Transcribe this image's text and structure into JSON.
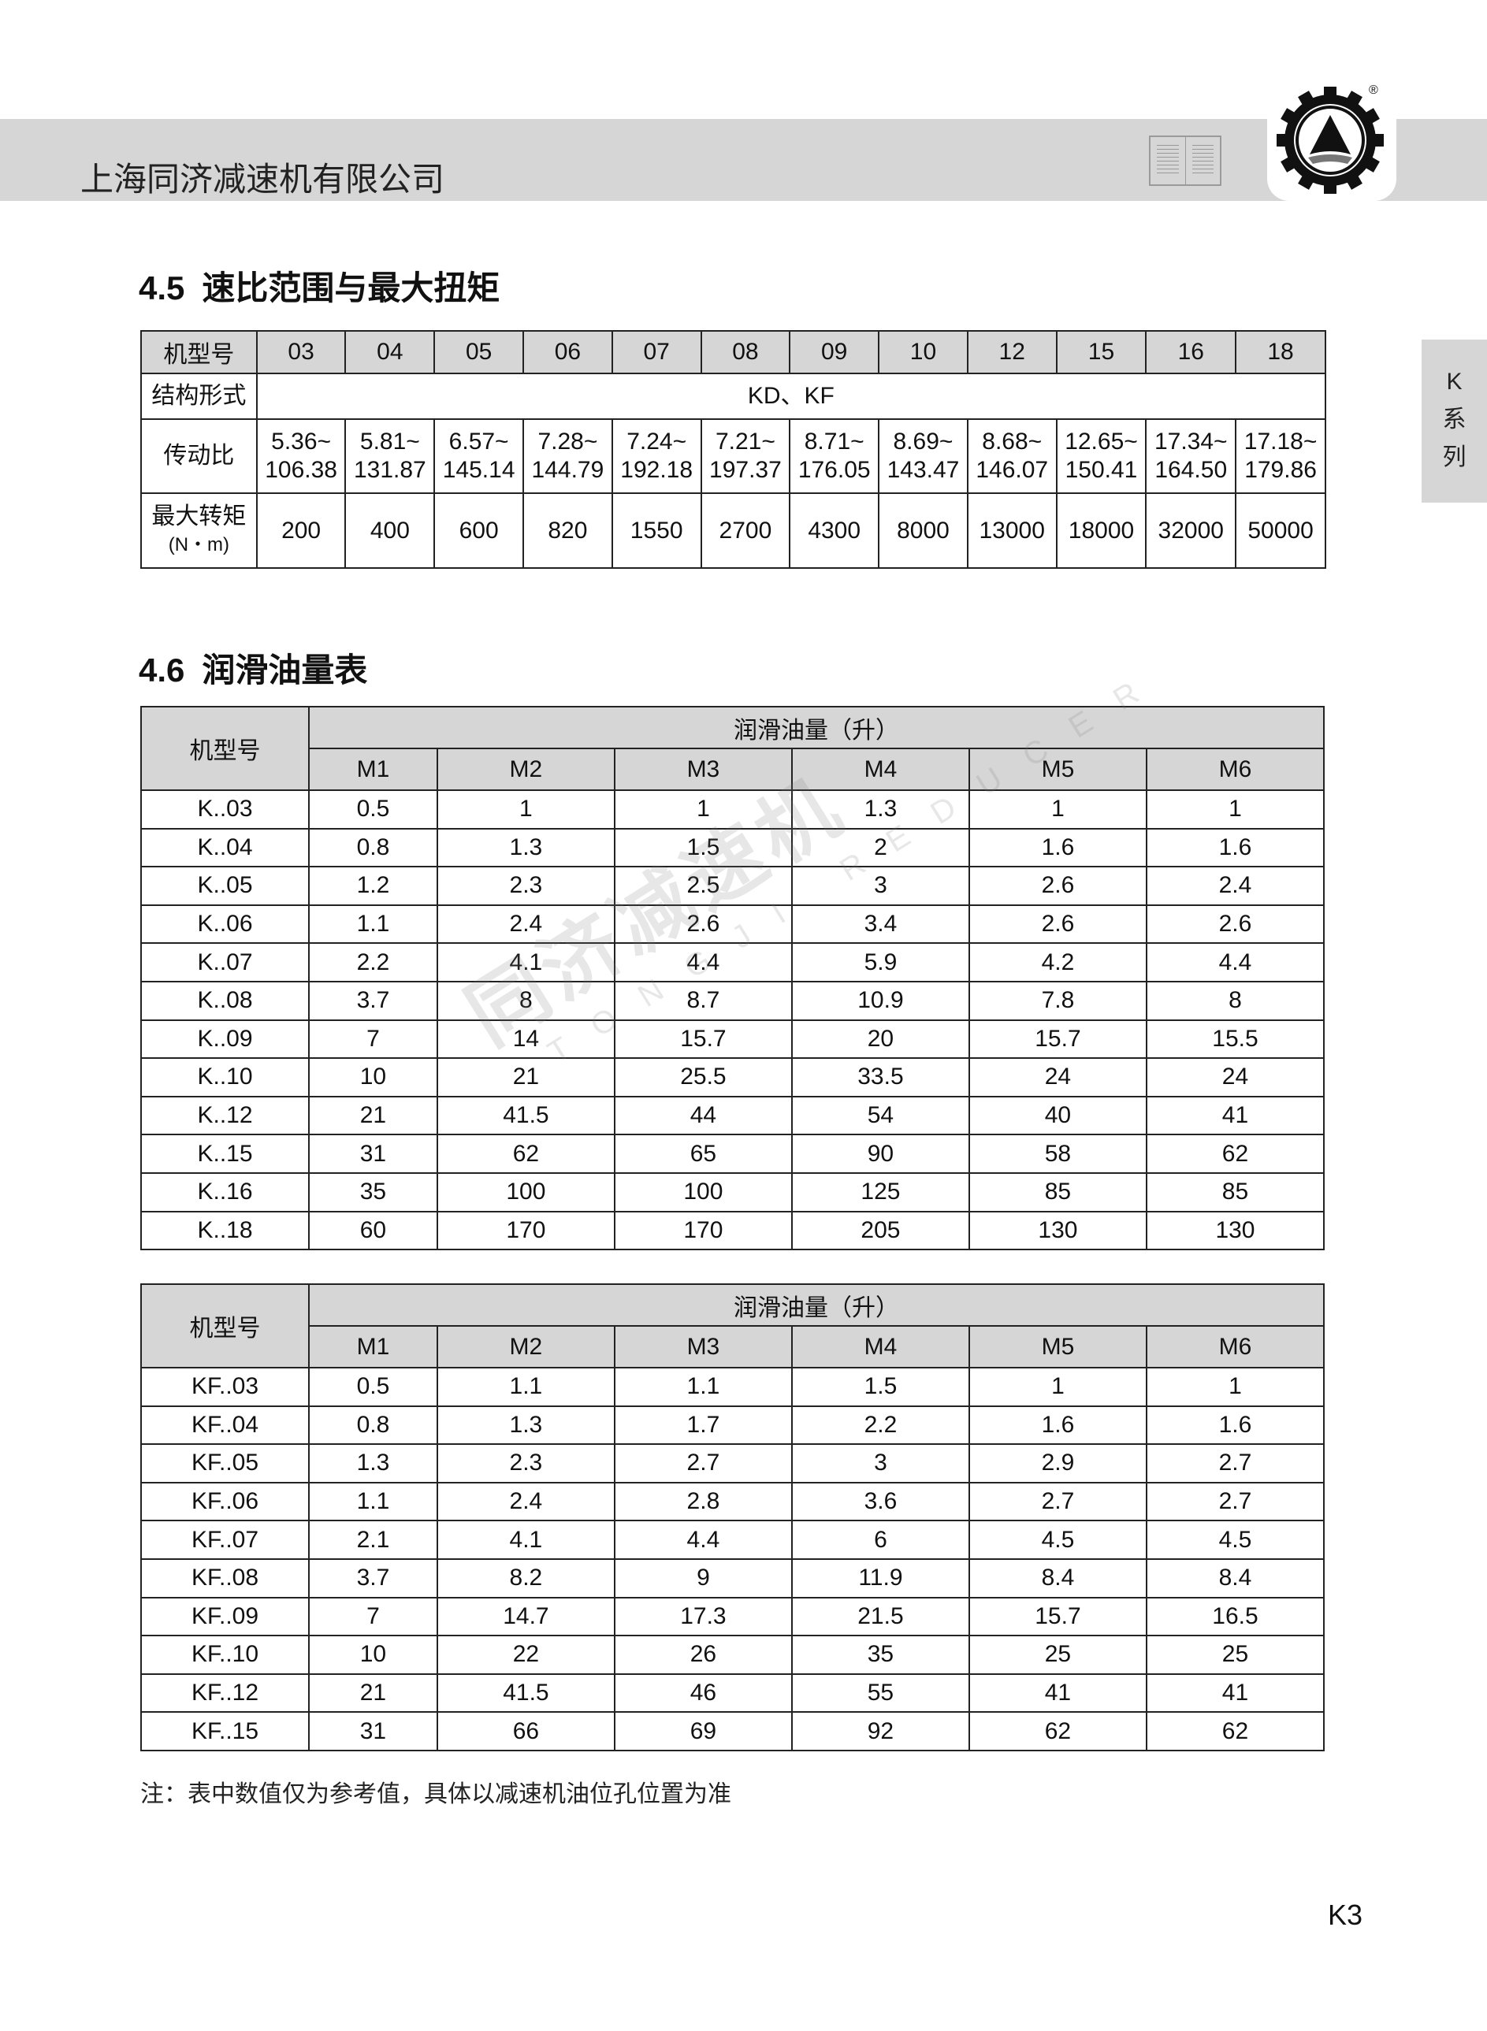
{
  "header": {
    "company": "上海同济减速机有限公司",
    "logo_mark": "®"
  },
  "side_tab": {
    "lines": [
      "K",
      "系",
      "列"
    ]
  },
  "section45": {
    "num": "4.5",
    "title": "速比范围与最大扭矩",
    "row_labels": [
      "机型号",
      "结构形式",
      "传动比",
      "最大转矩",
      "(N・m)"
    ],
    "models": [
      "03",
      "04",
      "05",
      "06",
      "07",
      "08",
      "09",
      "10",
      "12",
      "15",
      "16",
      "18"
    ],
    "structure": "KD、KF",
    "ratio_min": [
      "5.36~",
      "5.81~",
      "6.57~",
      "7.28~",
      "7.24~",
      "7.21~",
      "8.71~",
      "8.69~",
      "8.68~",
      "12.65~",
      "17.34~",
      "17.18~"
    ],
    "ratio_max": [
      "106.38",
      "131.87",
      "145.14",
      "144.79",
      "192.18",
      "197.37",
      "176.05",
      "143.47",
      "146.07",
      "150.41",
      "164.50",
      "179.86"
    ],
    "torque": [
      "200",
      "400",
      "600",
      "820",
      "1550",
      "2700",
      "4300",
      "8000",
      "13000",
      "18000",
      "32000",
      "50000"
    ]
  },
  "section46": {
    "num": "4.6",
    "title": "润滑油量表",
    "model_header": "机型号",
    "oil_header": "润滑油量（升）",
    "positions": [
      "M1",
      "M2",
      "M3",
      "M4",
      "M5",
      "M6"
    ],
    "k_rows": [
      [
        "K..03",
        "0.5",
        "1",
        "1",
        "1.3",
        "1",
        "1"
      ],
      [
        "K..04",
        "0.8",
        "1.3",
        "1.5",
        "2",
        "1.6",
        "1.6"
      ],
      [
        "K..05",
        "1.2",
        "2.3",
        "2.5",
        "3",
        "2.6",
        "2.4"
      ],
      [
        "K..06",
        "1.1",
        "2.4",
        "2.6",
        "3.4",
        "2.6",
        "2.6"
      ],
      [
        "K..07",
        "2.2",
        "4.1",
        "4.4",
        "5.9",
        "4.2",
        "4.4"
      ],
      [
        "K..08",
        "3.7",
        "8",
        "8.7",
        "10.9",
        "7.8",
        "8"
      ],
      [
        "K..09",
        "7",
        "14",
        "15.7",
        "20",
        "15.7",
        "15.5"
      ],
      [
        "K..10",
        "10",
        "21",
        "25.5",
        "33.5",
        "24",
        "24"
      ],
      [
        "K..12",
        "21",
        "41.5",
        "44",
        "54",
        "40",
        "41"
      ],
      [
        "K..15",
        "31",
        "62",
        "65",
        "90",
        "58",
        "62"
      ],
      [
        "K..16",
        "35",
        "100",
        "100",
        "125",
        "85",
        "85"
      ],
      [
        "K..18",
        "60",
        "170",
        "170",
        "205",
        "130",
        "130"
      ]
    ],
    "kf_rows": [
      [
        "KF..03",
        "0.5",
        "1.1",
        "1.1",
        "1.5",
        "1",
        "1"
      ],
      [
        "KF..04",
        "0.8",
        "1.3",
        "1.7",
        "2.2",
        "1.6",
        "1.6"
      ],
      [
        "KF..05",
        "1.3",
        "2.3",
        "2.7",
        "3",
        "2.9",
        "2.7"
      ],
      [
        "KF..06",
        "1.1",
        "2.4",
        "2.8",
        "3.6",
        "2.7",
        "2.7"
      ],
      [
        "KF..07",
        "2.1",
        "4.1",
        "4.4",
        "6",
        "4.5",
        "4.5"
      ],
      [
        "KF..08",
        "3.7",
        "8.2",
        "9",
        "11.9",
        "8.4",
        "8.4"
      ],
      [
        "KF..09",
        "7",
        "14.7",
        "17.3",
        "21.5",
        "15.7",
        "16.5"
      ],
      [
        "KF..10",
        "10",
        "22",
        "26",
        "35",
        "25",
        "25"
      ],
      [
        "KF..12",
        "21",
        "41.5",
        "46",
        "55",
        "41",
        "41"
      ],
      [
        "KF..15",
        "31",
        "66",
        "69",
        "92",
        "62",
        "62"
      ]
    ],
    "note": "注：表中数值仅为参考值，具体以减速机油位孔位置为准"
  },
  "watermark": {
    "cn": "同济减速机",
    "en": "TONGJI REDUCER"
  },
  "page_number": "K3"
}
